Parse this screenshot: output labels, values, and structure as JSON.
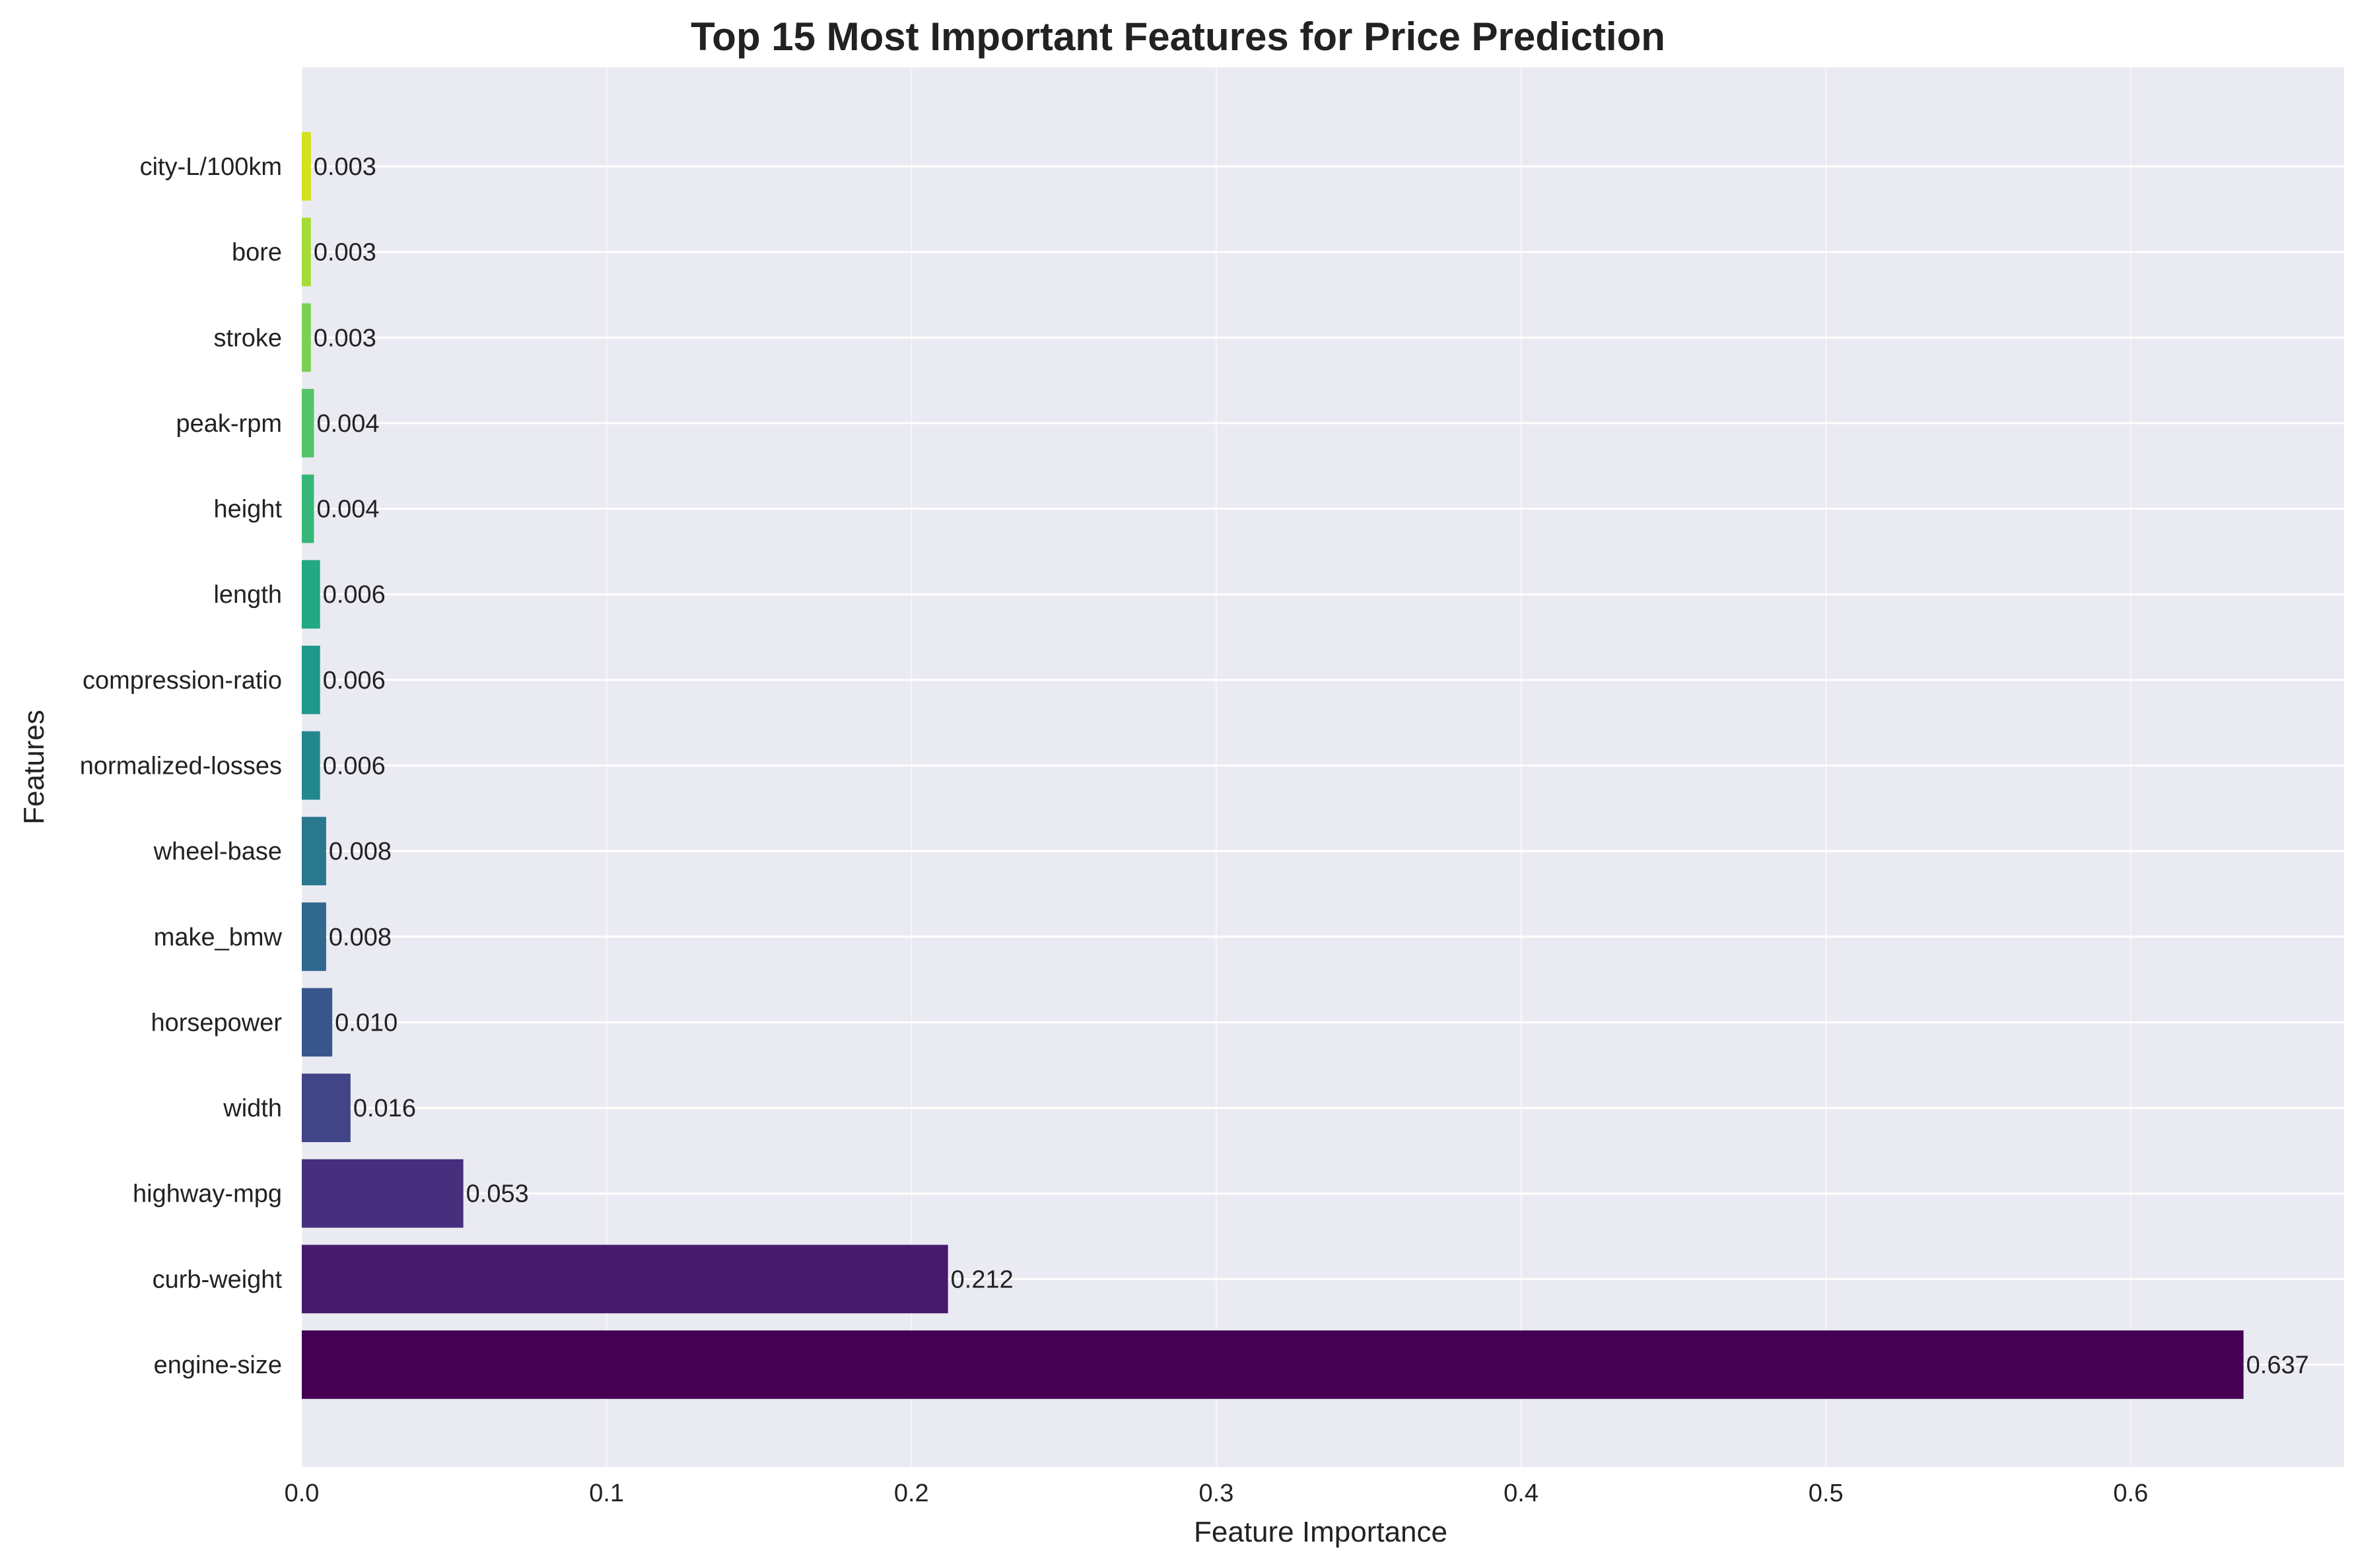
{
  "chart_data": {
    "type": "bar",
    "orientation": "horizontal",
    "title": "Top 15 Most Important Features for Price Prediction",
    "xlabel": "Feature Importance",
    "ylabel": "Features",
    "xlim": [
      0,
      0.67
    ],
    "xticks": [
      0.0,
      0.1,
      0.2,
      0.3,
      0.4,
      0.5,
      0.6
    ],
    "xtick_labels": [
      "0.0",
      "0.1",
      "0.2",
      "0.3",
      "0.4",
      "0.5",
      "0.6"
    ],
    "grid": true,
    "background_color": "#eaeaf2",
    "grid_color": "#ffffff",
    "categories": [
      "engine-size",
      "curb-weight",
      "highway-mpg",
      "width",
      "horsepower",
      "make_bmw",
      "wheel-base",
      "normalized-losses",
      "compression-ratio",
      "length",
      "height",
      "peak-rpm",
      "stroke",
      "bore",
      "city-L/100km"
    ],
    "values": [
      0.637,
      0.212,
      0.053,
      0.016,
      0.01,
      0.008,
      0.008,
      0.006,
      0.006,
      0.006,
      0.004,
      0.004,
      0.003,
      0.003,
      0.003
    ],
    "value_labels": [
      "0.637",
      "0.212",
      "0.053",
      "0.016",
      "0.010",
      "0.008",
      "0.008",
      "0.006",
      "0.006",
      "0.006",
      "0.004",
      "0.004",
      "0.003",
      "0.003",
      "0.003"
    ],
    "colors": [
      "#440154",
      "#481a6c",
      "#472f7d",
      "#414487",
      "#39568c",
      "#31688e",
      "#2a788e",
      "#23888e",
      "#1f988b",
      "#22a884",
      "#35b779",
      "#54c568",
      "#7ad151",
      "#a5db36",
      "#d2e21b"
    ]
  }
}
